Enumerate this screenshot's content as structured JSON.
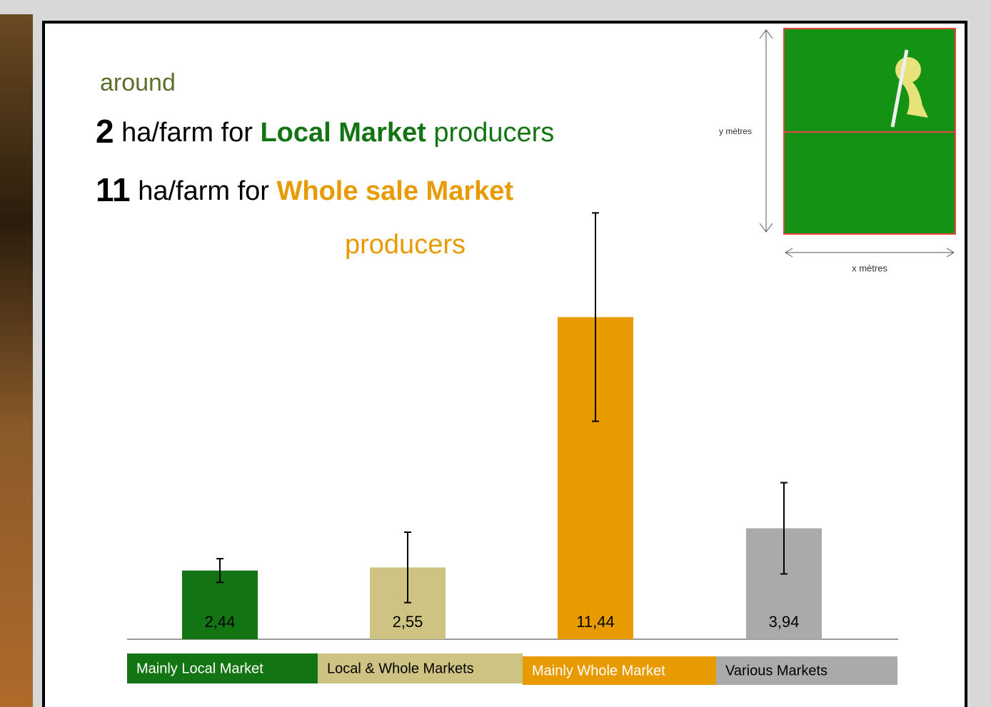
{
  "chart_data": {
    "type": "bar",
    "annotations": [
      "around",
      "2",
      "ha/farm for",
      "Local Market",
      "producers",
      "11",
      "ha/farm for",
      "Whole sale Market",
      "producers"
    ],
    "categories": [
      "Mainly Local Market",
      "Local & Whole Markets",
      "Mainly Whole Market",
      "Various Markets"
    ],
    "values": [
      2.44,
      2.55,
      11.44,
      3.94
    ],
    "value_labels": [
      "2,44",
      "2,55",
      "11,44",
      "3,94"
    ],
    "errors": [
      0.42,
      1.25,
      3.7,
      1.62
    ],
    "colors": [
      "#137413",
      "#cfc384",
      "#e89b00",
      "#aaaaaa"
    ],
    "ylim": [
      0,
      15.1
    ]
  },
  "inset": {
    "y_label": "y mètres",
    "x_label": "x mètres"
  }
}
